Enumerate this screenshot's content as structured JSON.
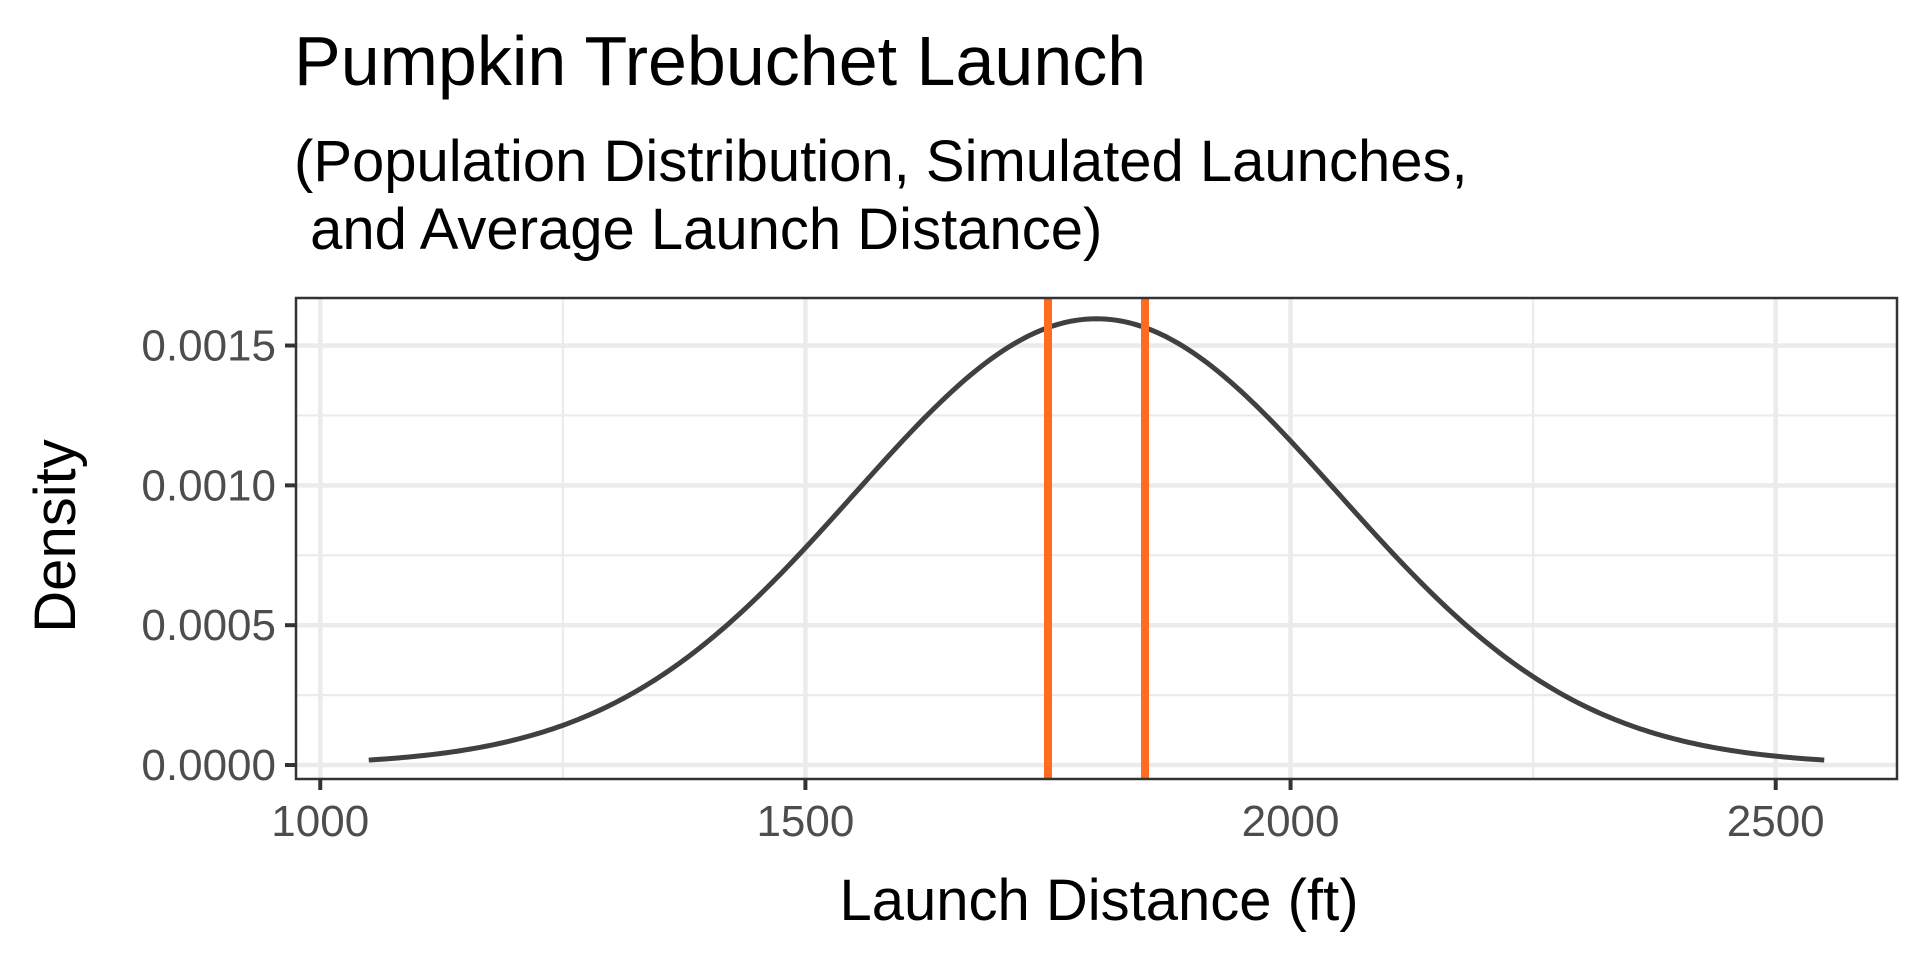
{
  "chart_data": {
    "type": "line",
    "title": "Pumpkin Trebuchet Launch",
    "subtitle_lines": [
      "(Population Distribution, Simulated Launches,",
      " and Average Launch Distance)"
    ],
    "xlabel": "Launch Distance (ft)",
    "ylabel": "Density",
    "xlim": [
      975,
      2625
    ],
    "ylim": [
      -5e-05,
      0.00167
    ],
    "x_ticks": [
      1000,
      1500,
      2000,
      2500
    ],
    "x_tick_labels": [
      "1000",
      "1500",
      "2000",
      "2500"
    ],
    "y_ticks": [
      0.0,
      0.0005,
      0.001,
      0.0015
    ],
    "y_tick_labels": [
      "0.0000",
      "0.0005",
      "0.0010",
      "0.0015"
    ],
    "grid": true,
    "legend": "none",
    "series": [
      {
        "kind": "normal-density-curve",
        "mean": 1800,
        "sd": 250,
        "x_from": 1050,
        "x_to": 2550,
        "color": "#404040"
      }
    ],
    "vlines": [
      {
        "x": 1750,
        "color": "#FF6B1F"
      },
      {
        "x": 1850,
        "color": "#FF6B1F"
      }
    ]
  }
}
